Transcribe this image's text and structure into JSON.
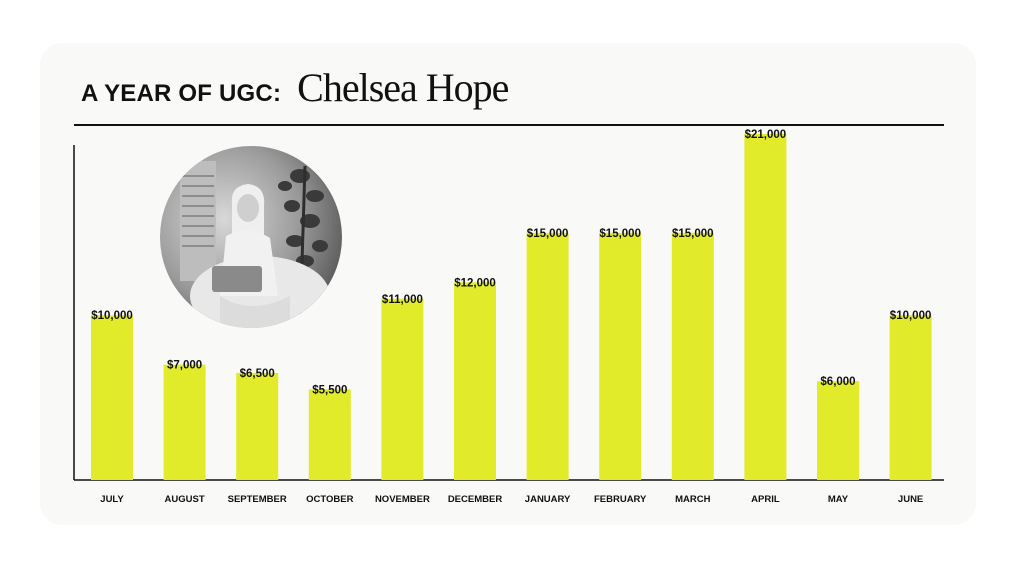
{
  "header": {
    "title": "A YEAR OF UGC:",
    "name": "Chelsea Hope"
  },
  "colors": {
    "bar": "#e2eb2a",
    "text": "#111111",
    "card": "#f9f9f7"
  },
  "avatar": {
    "icon": "profile-photo-icon"
  },
  "chart_data": {
    "type": "bar",
    "title": "A YEAR OF UGC:",
    "categories": [
      "JULY",
      "AUGUST",
      "SEPTEMBER",
      "OCTOBER",
      "NOVEMBER",
      "DECEMBER",
      "JANUARY",
      "FEBRUARY",
      "MARCH",
      "APRIL",
      "MAY",
      "JUNE"
    ],
    "values": [
      10000,
      7000,
      6500,
      5500,
      11000,
      12000,
      15000,
      15000,
      15000,
      21000,
      6000,
      10000
    ],
    "data_labels": [
      "$10,000",
      "$7,000",
      "$6,500",
      "$5,500",
      "$11,000",
      "$12,000",
      "$15,000",
      "$15,000",
      "$15,000",
      "$21,000",
      "$6,000",
      "$10,000"
    ],
    "xlabel": "",
    "ylabel": "",
    "ylim": [
      0,
      21000
    ],
    "grid": false,
    "legend": "none"
  }
}
